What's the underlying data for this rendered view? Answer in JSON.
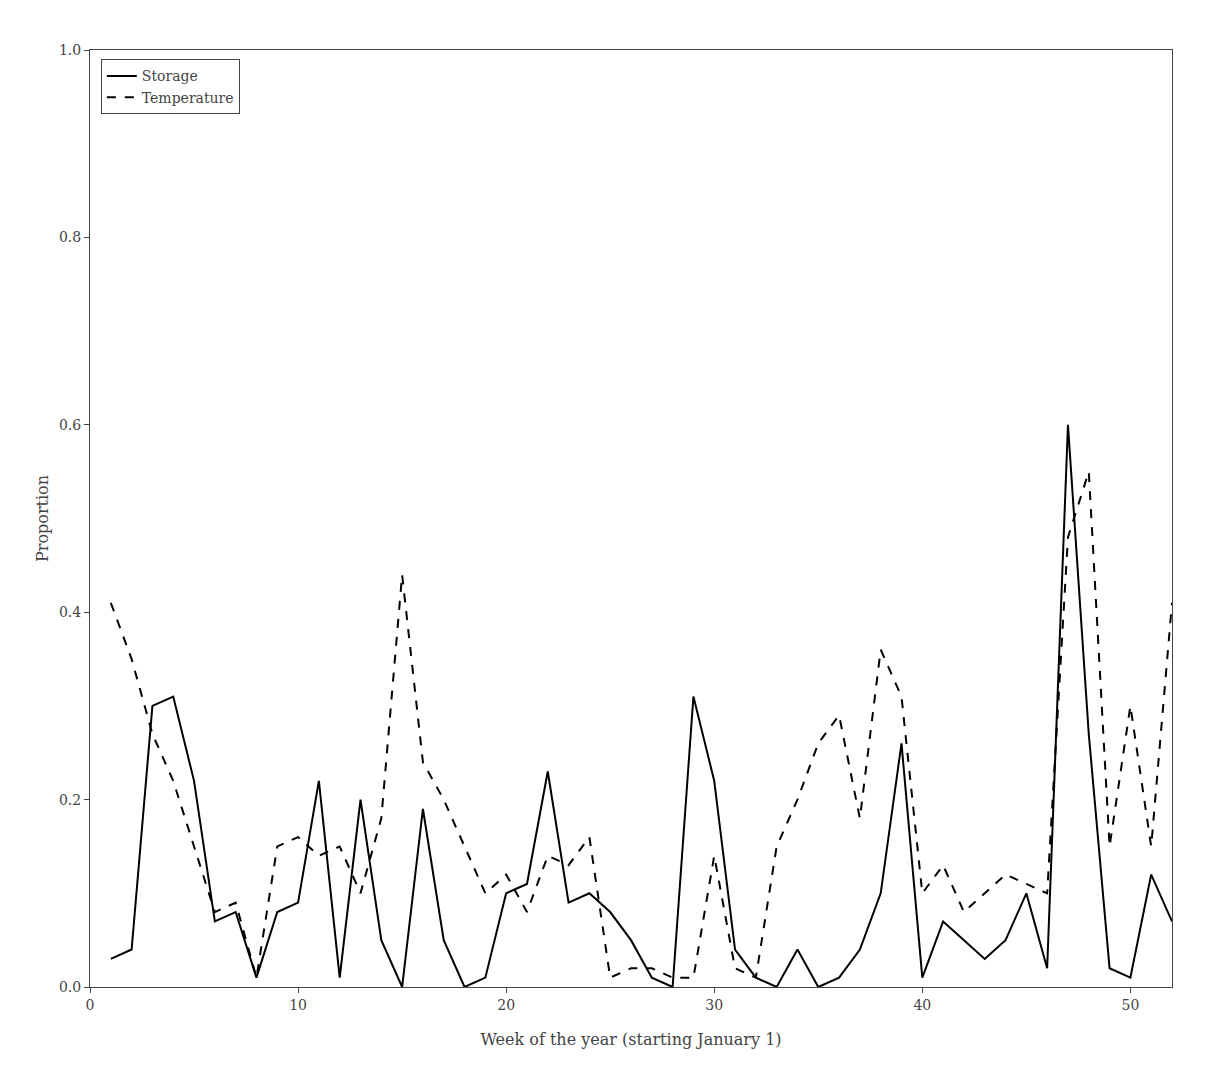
{
  "chart_data": {
    "type": "line",
    "x_label": "Week of the year (starting January 1)",
    "y_label": "Proportion",
    "x": [
      1,
      2,
      3,
      4,
      5,
      6,
      7,
      8,
      9,
      10,
      11,
      12,
      13,
      14,
      15,
      16,
      17,
      18,
      19,
      20,
      21,
      22,
      23,
      24,
      25,
      26,
      27,
      28,
      29,
      30,
      31,
      32,
      33,
      34,
      35,
      36,
      37,
      38,
      39,
      40,
      41,
      42,
      43,
      44,
      45,
      46,
      47,
      48,
      49,
      50,
      51,
      52
    ],
    "series": [
      {
        "name": "Storage",
        "color": "#000000",
        "line_style": "solid",
        "values": [
          0.03,
          0.04,
          0.3,
          0.31,
          0.22,
          0.07,
          0.08,
          0.01,
          0.08,
          0.09,
          0.22,
          0.01,
          0.2,
          0.05,
          0.0,
          0.19,
          0.05,
          0.0,
          0.01,
          0.1,
          0.11,
          0.23,
          0.09,
          0.1,
          0.08,
          0.05,
          0.01,
          0.0,
          0.31,
          0.22,
          0.04,
          0.01,
          0.0,
          0.04,
          0.0,
          0.01,
          0.04,
          0.1,
          0.26,
          0.01,
          0.07,
          0.05,
          0.03,
          0.05,
          0.1,
          0.02,
          0.6,
          0.27,
          0.02,
          0.01,
          0.12,
          0.07
        ]
      },
      {
        "name": "Temperature",
        "color": "#000000",
        "line_style": "dashed",
        "values": [
          0.41,
          0.35,
          0.27,
          0.22,
          0.15,
          0.08,
          0.09,
          0.01,
          0.15,
          0.16,
          0.14,
          0.15,
          0.1,
          0.18,
          0.44,
          0.24,
          0.2,
          0.15,
          0.1,
          0.12,
          0.08,
          0.14,
          0.13,
          0.16,
          0.01,
          0.02,
          0.02,
          0.01,
          0.01,
          0.14,
          0.02,
          0.01,
          0.15,
          0.2,
          0.26,
          0.29,
          0.18,
          0.36,
          0.31,
          0.1,
          0.13,
          0.08,
          0.1,
          0.12,
          0.11,
          0.1,
          0.48,
          0.55,
          0.15,
          0.3,
          0.15,
          0.41
        ]
      }
    ],
    "xlim": [
      0,
      52
    ],
    "ylim": [
      0.0,
      1.0
    ],
    "xticks": [
      0,
      10,
      20,
      30,
      40,
      50
    ],
    "yticks": [
      {
        "value": 0.0,
        "label": "0.0"
      },
      0.2,
      0.4,
      0.6,
      0.8,
      {
        "value": 1.0,
        "label": "1.0"
      }
    ],
    "legend": "upper left",
    "grid": false
  }
}
